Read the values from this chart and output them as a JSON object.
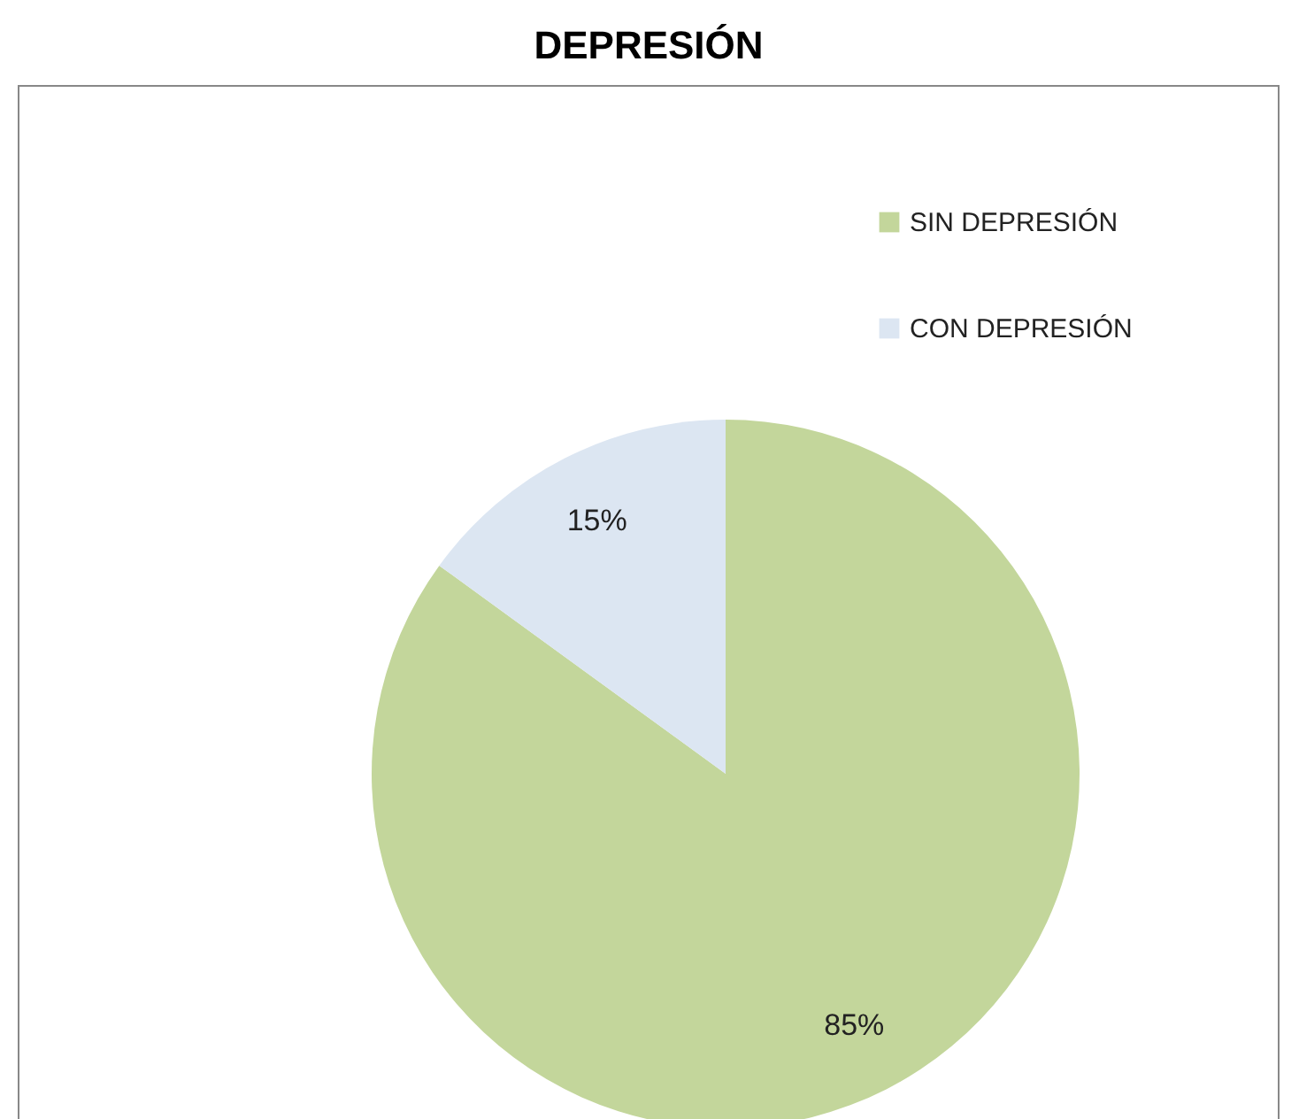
{
  "chart_data": {
    "type": "pie",
    "title": "DEPRESIÓN",
    "categories": [
      "SIN DEPRESIÓN",
      "CON DEPRESIÓN"
    ],
    "values": [
      85,
      15
    ],
    "colors": [
      "#c3d69b",
      "#dce6f2"
    ],
    "value_labels": [
      "85%",
      "15%"
    ],
    "legend": "top right"
  }
}
